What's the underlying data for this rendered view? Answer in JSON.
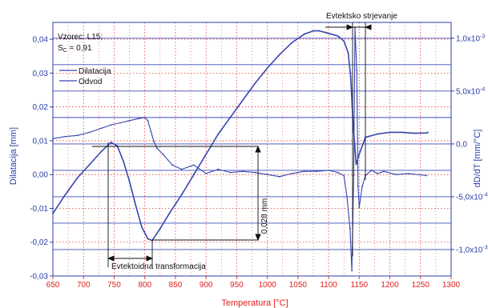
{
  "chart_data": {
    "type": "line",
    "xlabel": "Temperatura [°C]",
    "ylabel_left": "Dilatacija [mm]",
    "ylabel_right": "dD/dT [mm/°C]",
    "xlim": [
      650,
      1300
    ],
    "ylim_left": [
      -0.03,
      0.045
    ],
    "ylim_right": [
      -0.00125,
      0.00115
    ],
    "x_ticks": [
      "650",
      "700",
      "750",
      "800",
      "850",
      "900",
      "950",
      "1000",
      "1050",
      "1100",
      "1150",
      "1200",
      "1250",
      "1300"
    ],
    "y_left_ticks": [
      {
        "v": 0.04,
        "label": "0,04"
      },
      {
        "v": 0.03,
        "label": "0,03"
      },
      {
        "v": 0.02,
        "label": "0,02"
      },
      {
        "v": 0.01,
        "label": "0,01"
      },
      {
        "v": 0.0,
        "label": "0,00"
      },
      {
        "v": -0.01,
        "label": "-0,01"
      },
      {
        "v": -0.02,
        "label": "-0,02"
      },
      {
        "v": -0.03,
        "label": "-0,03"
      }
    ],
    "y_right_ticks": [
      {
        "v": 0.001,
        "base": "1,0x10",
        "exp": "-3"
      },
      {
        "v": 0.0005,
        "base": "5,0x10",
        "exp": "-4"
      },
      {
        "v": 0.0,
        "base": "0,0",
        "exp": ""
      },
      {
        "v": -0.0005,
        "base": "-5,0x10",
        "exp": "-4"
      },
      {
        "v": -0.001,
        "base": "-1,0x10",
        "exp": "-3"
      }
    ],
    "info_line1": "Vzorec: L15;",
    "info_line2_main": "S",
    "info_line2_sub": "C",
    "info_line2_rest": " = 0,91",
    "legend_position": "top-left",
    "series": [
      {
        "name": "Dilatacija",
        "axis": "left",
        "x": [
          650,
          670,
          690,
          710,
          730,
          745,
          755,
          765,
          775,
          785,
          795,
          805,
          812,
          825,
          840,
          860,
          880,
          900,
          920,
          940,
          960,
          980,
          1000,
          1020,
          1040,
          1060,
          1075,
          1085,
          1095,
          1105,
          1115,
          1125,
          1132,
          1136,
          1140,
          1145,
          1150,
          1160,
          1180,
          1200,
          1220,
          1240,
          1260,
          1262
        ],
        "y": [
          -0.0115,
          -0.006,
          -0.001,
          0.003,
          0.007,
          0.0095,
          0.0085,
          0.004,
          -0.002,
          -0.009,
          -0.0155,
          -0.019,
          -0.0195,
          -0.016,
          -0.0115,
          -0.006,
          0.0,
          0.006,
          0.012,
          0.017,
          0.022,
          0.027,
          0.0315,
          0.0355,
          0.039,
          0.0415,
          0.0425,
          0.0425,
          0.042,
          0.0415,
          0.041,
          0.0395,
          0.036,
          0.029,
          0.015,
          0.003,
          0.006,
          0.011,
          0.012,
          0.0125,
          0.0125,
          0.0122,
          0.0123,
          0.0125
        ]
      },
      {
        "name": "Odvod",
        "axis": "right",
        "x": [
          650,
          670,
          690,
          710,
          730,
          745,
          760,
          775,
          790,
          800,
          805,
          810,
          815,
          820,
          830,
          845,
          860,
          880,
          900,
          920,
          940,
          960,
          980,
          1000,
          1020,
          1040,
          1060,
          1080,
          1100,
          1115,
          1125,
          1130,
          1135,
          1138,
          1141,
          1143,
          1146,
          1148,
          1150,
          1155,
          1160,
          1170,
          1180,
          1190,
          1210,
          1230,
          1260
        ],
        "y": [
          5e-05,
          7e-05,
          8e-05,
          0.00011,
          0.00015,
          0.00018,
          0.0002,
          0.00022,
          0.00024,
          0.00025,
          0.00022,
          0.00012,
          2e-05,
          -4e-05,
          -0.0001,
          -0.0002,
          -0.00024,
          -0.0002,
          -0.00028,
          -0.00024,
          -0.00027,
          -0.00026,
          -0.00027,
          -0.00029,
          -0.00031,
          -0.00028,
          -0.00026,
          -0.00026,
          -0.00025,
          -0.00027,
          -0.0003,
          -0.0005,
          -0.0008,
          -0.0012,
          -0.0003,
          0.0011,
          0.0007,
          -0.0004,
          -0.0006,
          -0.0004,
          -0.0003,
          -0.00025,
          -0.00028,
          -0.00026,
          -0.00029,
          -0.00028,
          -0.0003
        ]
      }
    ],
    "annotations": {
      "vertical_measure_label": "0,028 mm",
      "bottom_label": "Evtektoidna transformacija",
      "top_label": "Evtektsko strjevanje"
    }
  }
}
